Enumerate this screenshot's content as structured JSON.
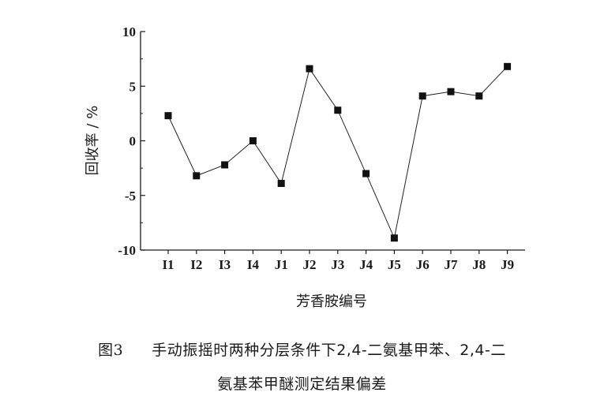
{
  "chart_data": {
    "type": "line",
    "categories": [
      "I1",
      "I2",
      "I3",
      "I4",
      "J1",
      "J2",
      "J3",
      "J4",
      "J5",
      "J6",
      "J7",
      "J8",
      "J9"
    ],
    "values": [
      2.3,
      -3.2,
      -2.2,
      0.0,
      -3.9,
      6.6,
      2.8,
      -3.0,
      -8.9,
      4.1,
      4.5,
      4.1,
      6.8
    ],
    "xlabel": "芳香胺编号",
    "ylabel": "回收率 / %",
    "ylim": [
      -10,
      10
    ],
    "yticks": [
      "10",
      "5",
      "0",
      "-5",
      "-10"
    ],
    "yticks_values": [
      10,
      5,
      0,
      -5,
      -10
    ],
    "marker": "square",
    "grid": false,
    "colors": {
      "line": "#222222",
      "marker": "#111111",
      "axis": "#1a1a1a"
    }
  },
  "caption": {
    "figure_label": "图3",
    "line1": "手动振摇时两种分层条件下2,4-二氨基甲苯、2,4-二",
    "line2": "氨基苯甲醚测定结果偏差"
  }
}
